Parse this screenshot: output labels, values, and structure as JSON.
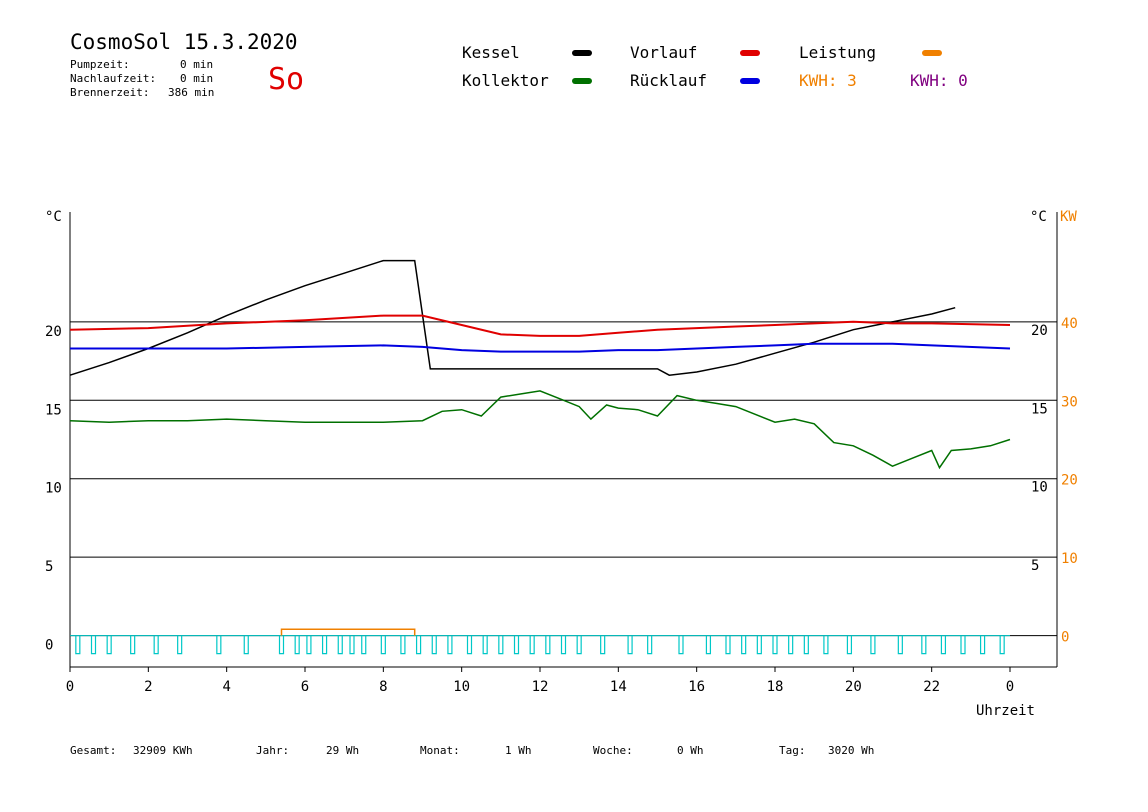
{
  "header": {
    "title": "CosmoSol 15.3.2020",
    "weekday": "So",
    "stats": [
      {
        "label": "Pumpzeit:",
        "value": "0 min"
      },
      {
        "label": "Nachlaufzeit:",
        "value": "0 min"
      },
      {
        "label": "Brennerzeit:",
        "value": "386 min"
      }
    ]
  },
  "legend": {
    "kessel": "Kessel",
    "vorlauf": "Vorlauf",
    "leistung": "Leistung",
    "kollektor": "Kollektor",
    "ruecklauf": "Rücklauf",
    "kwh1": "KWH: 3",
    "kwh2": "KWH: 0"
  },
  "footer": {
    "gesamt_label": "Gesamt:",
    "gesamt_value": "32909 KWh",
    "jahr_label": "Jahr:",
    "jahr_value": "29 Wh",
    "monat_label": "Monat:",
    "monat_value": "1 Wh",
    "woche_label": "Woche:",
    "woche_value": "0 Wh",
    "tag_label": "Tag:",
    "tag_value": "3020 Wh"
  },
  "colors": {
    "kessel": "#000000",
    "vorlauf": "#e00000",
    "ruecklauf": "#0000e0",
    "kollektor": "#007000",
    "leistung": "#f08000",
    "pump": "#00c8c8",
    "kwh2": "#800080"
  },
  "chart_data": {
    "type": "line",
    "xlabel": "Uhrzeit",
    "x_ticks": [
      "0",
      "2",
      "4",
      "6",
      "8",
      "10",
      "12",
      "14",
      "16",
      "18",
      "20",
      "22",
      "0"
    ],
    "x_range": [
      0,
      24
    ],
    "left_axis": {
      "unit": "°C",
      "range": [
        -2,
        27
      ],
      "ticks": [
        "0",
        "5",
        "10",
        "15",
        "20"
      ],
      "tick_values": [
        0,
        5,
        10,
        15,
        20
      ]
    },
    "right_axis_temp": {
      "unit": "°C",
      "ticks": [
        "5",
        "10",
        "15",
        "20"
      ],
      "tick_values": [
        5,
        10,
        15,
        20
      ]
    },
    "right_axis_power": {
      "unit": "KW",
      "ticks": [
        "0",
        "10",
        "20",
        "30",
        "40"
      ],
      "tick_values": [
        0,
        10,
        20,
        30,
        40
      ]
    },
    "series": [
      {
        "name": "Kessel",
        "key": "kessel",
        "points": [
          [
            0,
            16.6
          ],
          [
            1,
            17.4
          ],
          [
            2,
            18.3
          ],
          [
            3,
            19.3
          ],
          [
            4,
            20.4
          ],
          [
            5,
            21.4
          ],
          [
            6,
            22.3
          ],
          [
            7,
            23.1
          ],
          [
            8,
            23.9
          ],
          [
            8.8,
            23.9
          ],
          [
            9.2,
            17.0
          ],
          [
            12,
            17.0
          ],
          [
            15,
            17.0
          ],
          [
            15.3,
            16.6
          ],
          [
            16,
            16.8
          ],
          [
            17,
            17.3
          ],
          [
            18,
            18.0
          ],
          [
            19,
            18.7
          ],
          [
            20,
            19.5
          ],
          [
            21,
            20.0
          ],
          [
            22,
            20.5
          ],
          [
            22.6,
            20.9
          ]
        ]
      },
      {
        "name": "Vorlauf",
        "key": "vorlauf",
        "points": [
          [
            0,
            19.5
          ],
          [
            2,
            19.6
          ],
          [
            4,
            19.9
          ],
          [
            6,
            20.1
          ],
          [
            8,
            20.4
          ],
          [
            9,
            20.4
          ],
          [
            10,
            19.8
          ],
          [
            11,
            19.2
          ],
          [
            12,
            19.1
          ],
          [
            13,
            19.1
          ],
          [
            14,
            19.3
          ],
          [
            15,
            19.5
          ],
          [
            16,
            19.6
          ],
          [
            17,
            19.7
          ],
          [
            18,
            19.8
          ],
          [
            19,
            19.9
          ],
          [
            20,
            20.0
          ],
          [
            21,
            19.9
          ],
          [
            22,
            19.9
          ],
          [
            24,
            19.8
          ]
        ]
      },
      {
        "name": "Rücklauf",
        "key": "ruecklauf",
        "points": [
          [
            0,
            18.3
          ],
          [
            2,
            18.3
          ],
          [
            4,
            18.3
          ],
          [
            6,
            18.4
          ],
          [
            8,
            18.5
          ],
          [
            9,
            18.4
          ],
          [
            10,
            18.2
          ],
          [
            11,
            18.1
          ],
          [
            12,
            18.1
          ],
          [
            13,
            18.1
          ],
          [
            14,
            18.2
          ],
          [
            15,
            18.2
          ],
          [
            16,
            18.3
          ],
          [
            17,
            18.4
          ],
          [
            18,
            18.5
          ],
          [
            19,
            18.6
          ],
          [
            20,
            18.6
          ],
          [
            21,
            18.6
          ],
          [
            22,
            18.5
          ],
          [
            24,
            18.3
          ]
        ]
      },
      {
        "name": "Kollektor",
        "key": "kollektor",
        "points": [
          [
            0,
            13.7
          ],
          [
            1,
            13.6
          ],
          [
            2,
            13.7
          ],
          [
            3,
            13.7
          ],
          [
            4,
            13.8
          ],
          [
            5,
            13.7
          ],
          [
            6,
            13.6
          ],
          [
            7,
            13.6
          ],
          [
            8,
            13.6
          ],
          [
            9,
            13.7
          ],
          [
            9.5,
            14.3
          ],
          [
            10,
            14.4
          ],
          [
            10.5,
            14.0
          ],
          [
            11,
            15.2
          ],
          [
            11.5,
            15.4
          ],
          [
            12,
            15.6
          ],
          [
            12.5,
            15.1
          ],
          [
            13,
            14.6
          ],
          [
            13.3,
            13.8
          ],
          [
            13.7,
            14.7
          ],
          [
            14,
            14.5
          ],
          [
            14.5,
            14.4
          ],
          [
            15,
            14.0
          ],
          [
            15.5,
            15.3
          ],
          [
            16,
            15.0
          ],
          [
            16.5,
            14.8
          ],
          [
            17,
            14.6
          ],
          [
            18,
            13.6
          ],
          [
            18.5,
            13.8
          ],
          [
            19,
            13.5
          ],
          [
            19.5,
            12.3
          ],
          [
            20,
            12.1
          ],
          [
            20.5,
            11.5
          ],
          [
            21,
            10.8
          ],
          [
            21.5,
            11.3
          ],
          [
            22,
            11.8
          ],
          [
            22.2,
            10.7
          ],
          [
            22.5,
            11.8
          ],
          [
            23,
            11.9
          ],
          [
            23.5,
            12.1
          ],
          [
            24,
            12.5
          ]
        ]
      },
      {
        "name": "Leistung",
        "key": "leistung",
        "points": [
          [
            5.4,
            0
          ],
          [
            5.4,
            0.4
          ],
          [
            8.8,
            0.4
          ],
          [
            8.8,
            0
          ]
        ]
      }
    ],
    "pump_pulses_hours": [
      0.2,
      0.6,
      1,
      1.6,
      2.2,
      2.8,
      3.8,
      4.5,
      5.4,
      5.8,
      6.1,
      6.5,
      6.9,
      7.2,
      7.5,
      8.0,
      8.5,
      8.9,
      9.3,
      9.7,
      10.2,
      10.6,
      11.0,
      11.4,
      11.8,
      12.2,
      12.6,
      13.0,
      13.6,
      14.3,
      14.8,
      15.6,
      16.3,
      16.8,
      17.2,
      17.6,
      18.0,
      18.4,
      18.8,
      19.3,
      19.9,
      20.5,
      21.2,
      21.8,
      22.3,
      22.8,
      23.3,
      23.8
    ],
    "grid": "horizontal"
  }
}
